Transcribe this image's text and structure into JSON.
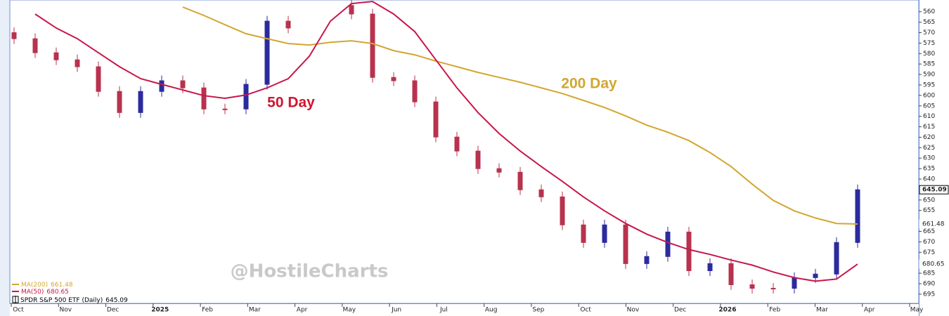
{
  "chart_data": {
    "type": "candlestick",
    "x_labels": [
      "Oct",
      "Nov",
      "Dec",
      "2025",
      "Feb",
      "Mar",
      "Apr",
      "May",
      "Jun",
      "Jul",
      "Aug",
      "Sep",
      "Oct",
      "Nov",
      "Dec",
      "2026",
      "Feb",
      "Mar",
      "Apr",
      "May"
    ],
    "ylim": [
      699.4,
      554.4
    ],
    "yticks": [
      560,
      565,
      570,
      575,
      580,
      585,
      590,
      595,
      600,
      605,
      610,
      615,
      620,
      625,
      630,
      635,
      640,
      650,
      655,
      665,
      670,
      675,
      685,
      690,
      695
    ],
    "grid": false,
    "watermark": "@HostileCharts",
    "series": [
      {
        "name": "SPDR S&P 500 ETF (Daily)",
        "type": "candlestick",
        "up_color": "#2b2b9e",
        "down_color": "#b8324e",
        "open": [
          570.0,
          572.9,
          579.6,
          583.0,
          586.3,
          598.1,
          608.2,
          598.1,
          593.0,
          596.4,
          606.5,
          606.5,
          594.7,
          564.5,
          null,
          null,
          557.0,
          561.1,
          591.4,
          593.0,
          603.1,
          619.9,
          626.6,
          635.0,
          636.7,
          645.1,
          648.5,
          661.9,
          670.3,
          661.9,
          680.4,
          677.0,
          665.3,
          683.8,
          680.4,
          690.5,
          692.2,
          692.2,
          687.1,
          685.4,
          670.3
        ],
        "high": [
          575.4,
          582.1,
          585.5,
          588.8,
          600.6,
          610.7,
          610.7,
          600.6,
          598.9,
          609.0,
          609.0,
          609.0,
          597.2,
          570.3,
          null,
          null,
          563.6,
          593.9,
          595.5,
          605.6,
          622.4,
          629.1,
          637.5,
          639.2,
          647.6,
          651.0,
          664.4,
          672.8,
          672.8,
          682.9,
          682.9,
          679.5,
          686.3,
          686.3,
          693.0,
          694.7,
          694.7,
          694.7,
          689.6,
          687.9,
          672.8
        ],
        "low": [
          567.5,
          570.4,
          577.1,
          580.5,
          583.8,
          595.6,
          595.6,
          590.5,
          590.5,
          593.9,
          604.0,
          592.2,
          562.0,
          562.0,
          null,
          null,
          554.5,
          558.6,
          588.9,
          590.5,
          600.6,
          617.4,
          624.1,
          632.5,
          634.2,
          642.6,
          646.0,
          659.4,
          659.4,
          659.4,
          674.5,
          662.8,
          662.8,
          677.9,
          677.9,
          688.0,
          689.7,
          684.6,
          682.9,
          667.8,
          642.6
        ],
        "close": [
          572.9,
          579.6,
          583.0,
          586.3,
          598.1,
          608.2,
          598.1,
          593.0,
          596.4,
          606.5,
          606.5,
          594.7,
          564.5,
          567.8,
          null,
          null,
          561.1,
          591.4,
          593.0,
          603.1,
          619.9,
          626.6,
          635.0,
          636.7,
          645.1,
          648.5,
          661.9,
          670.3,
          661.9,
          680.4,
          677.0,
          665.3,
          683.8,
          680.4,
          690.5,
          692.2,
          692.2,
          687.1,
          685.4,
          670.3,
          645.09
        ]
      },
      {
        "name": "MA(200)",
        "type": "line",
        "color": "#d2a630",
        "values": [
          null,
          null,
          null,
          null,
          null,
          null,
          null,
          null,
          557.8,
          561.8,
          566.2,
          570.5,
          572.9,
          575.2,
          575.9,
          574.6,
          573.9,
          575.2,
          578.6,
          580.6,
          583.6,
          586.3,
          589.0,
          591.4,
          593.7,
          596.4,
          599.1,
          602.4,
          605.8,
          609.8,
          614.2,
          617.6,
          621.6,
          627.3,
          634.0,
          642.4,
          650.2,
          655.2,
          658.6,
          661.2,
          661.48
        ]
      },
      {
        "name": "MA(50)",
        "type": "line",
        "color": "#c8174a",
        "values": [
          null,
          561.1,
          567.8,
          572.9,
          579.6,
          586.3,
          592.0,
          594.7,
          597.4,
          600.1,
          601.4,
          599.8,
          596.4,
          592.0,
          581.3,
          564.5,
          556.1,
          555.1,
          561.1,
          569.5,
          583.0,
          596.4,
          608.2,
          618.2,
          626.6,
          634.0,
          641.1,
          648.5,
          655.2,
          661.2,
          666.3,
          670.3,
          673.7,
          676.0,
          678.7,
          681.1,
          684.4,
          687.1,
          688.8,
          687.8,
          680.65
        ]
      }
    ],
    "annotations": [
      {
        "text": "200 Day",
        "color": "#d2a630"
      },
      {
        "text": "50 Day",
        "color": "#d01530"
      }
    ]
  }
}
